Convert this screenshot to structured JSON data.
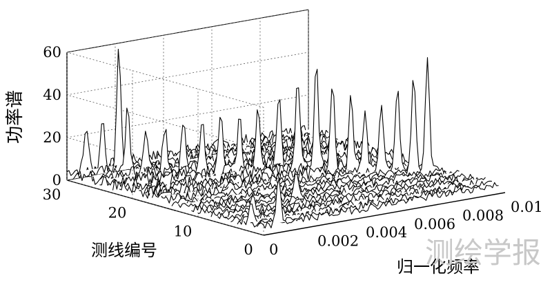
{
  "chart_data": {
    "type": "waterfall-3d",
    "zlabel": "功率谱",
    "xlabel": "归一化频率",
    "ylabel": "测线编号",
    "xlim": [
      0,
      0.01
    ],
    "ylim": [
      0,
      30
    ],
    "zlim": [
      0,
      60
    ],
    "x_ticks": [
      "0",
      "0.002",
      "0.004",
      "0.006",
      "0.008",
      "0.01"
    ],
    "y_ticks": [
      "0",
      "10",
      "20",
      "30"
    ],
    "z_ticks": [
      "0",
      "20",
      "40",
      "60"
    ],
    "grid": "on",
    "line_count": 30,
    "peaks": [
      {
        "line": 1,
        "freq": 0.0009,
        "power": 22
      },
      {
        "line": 3,
        "freq": 0.0003,
        "power": 9
      },
      {
        "line": 6,
        "freq": 0.0012,
        "power": 10
      },
      {
        "line": 9,
        "freq": 0.0038,
        "power": 12
      },
      {
        "line": 10,
        "freq": 0.0095,
        "power": 52
      },
      {
        "line": 11,
        "freq": 0.0092,
        "power": 45
      },
      {
        "line": 12,
        "freq": 0.0088,
        "power": 38
      },
      {
        "line": 13,
        "freq": 0.0084,
        "power": 30
      },
      {
        "line": 14,
        "freq": 0.008,
        "power": 28
      },
      {
        "line": 15,
        "freq": 0.0077,
        "power": 33
      },
      {
        "line": 16,
        "freq": 0.0072,
        "power": 40
      },
      {
        "line": 17,
        "freq": 0.0068,
        "power": 48
      },
      {
        "line": 18,
        "freq": 0.0063,
        "power": 42
      },
      {
        "line": 19,
        "freq": 0.0058,
        "power": 36
      },
      {
        "line": 20,
        "freq": 0.0052,
        "power": 30
      },
      {
        "line": 21,
        "freq": 0.0047,
        "power": 25
      },
      {
        "line": 22,
        "freq": 0.0042,
        "power": 26
      },
      {
        "line": 23,
        "freq": 0.0037,
        "power": 22
      },
      {
        "line": 24,
        "freq": 0.0032,
        "power": 24
      },
      {
        "line": 25,
        "freq": 0.0027,
        "power": 20
      },
      {
        "line": 26,
        "freq": 0.0022,
        "power": 18
      },
      {
        "line": 27,
        "freq": 0.0017,
        "power": 30
      },
      {
        "line": 28,
        "freq": 0.0016,
        "power": 58
      },
      {
        "line": 29,
        "freq": 0.0012,
        "power": 25
      },
      {
        "line": 30,
        "freq": 0.0008,
        "power": 20
      }
    ]
  },
  "watermark": "测绘学报"
}
